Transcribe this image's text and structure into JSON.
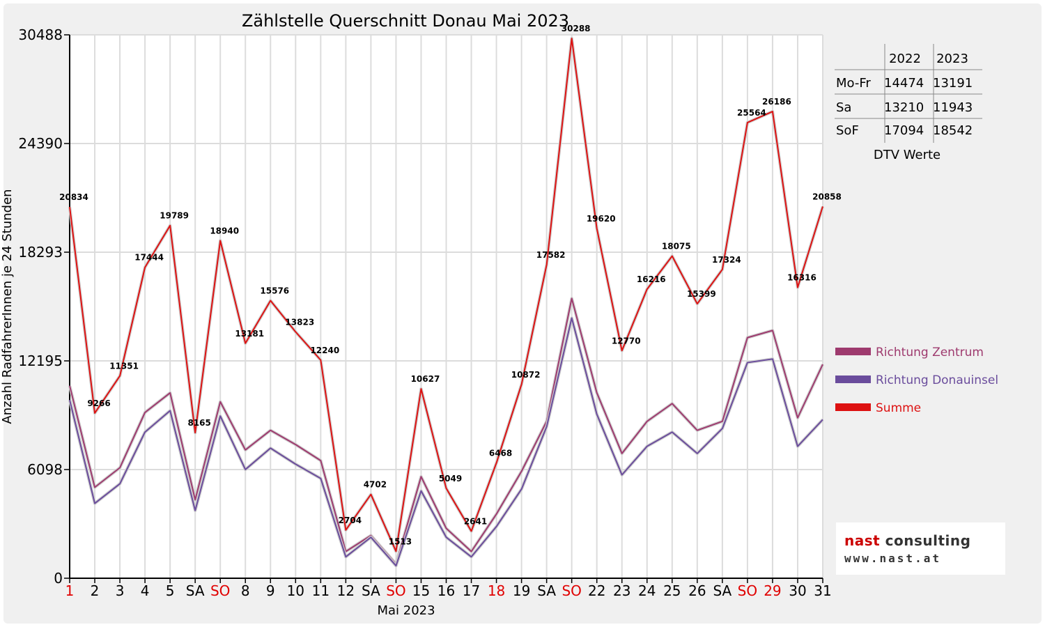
{
  "chart_data": {
    "type": "line",
    "title": "Zählstelle Querschnitt Donau Mai 2023",
    "xlabel": "Mai 2023",
    "ylabel": "Anzahl RadfahrerInnen je 24 Stunden",
    "ylim": [
      0,
      30488
    ],
    "yticks": [
      "0",
      "6098",
      "12195",
      "18293",
      "24390",
      "30488"
    ],
    "grid": true,
    "legend_position": "right",
    "categories": [
      "1",
      "2",
      "3",
      "4",
      "5",
      "SA",
      "SO",
      "8",
      "9",
      "10",
      "11",
      "12",
      "SA",
      "SO",
      "15",
      "16",
      "17",
      "18",
      "19",
      "SA",
      "SO",
      "22",
      "23",
      "24",
      "25",
      "26",
      "SA",
      "SO",
      "29",
      "30",
      "31"
    ],
    "red_categories": [
      0,
      6,
      13,
      20,
      27,
      17,
      28
    ],
    "series": [
      {
        "name": "Richtung Zentrum",
        "color": "#9e3a6e",
        "values": [
          10800,
          5100,
          6200,
          9300,
          10400,
          4400,
          9900,
          7200,
          8300,
          7500,
          6600,
          1500,
          2400,
          800,
          5700,
          2800,
          1500,
          3600,
          6000,
          8800,
          15700,
          10400,
          7000,
          8800,
          9800,
          8300,
          8800,
          13500,
          13900,
          9000,
          12000
        ]
      },
      {
        "name": "Richtung Donauinsel",
        "color": "#6a4c9c",
        "values": [
          10000,
          4200,
          5300,
          8200,
          9400,
          3800,
          9100,
          6100,
          7300,
          6400,
          5600,
          1200,
          2300,
          700,
          4900,
          2300,
          1200,
          2900,
          5000,
          8500,
          14600,
          9200,
          5800,
          7400,
          8200,
          7000,
          8400,
          12100,
          12300,
          7400,
          8900
        ]
      },
      {
        "name": "Summe",
        "color": "#dd1111",
        "values": [
          20834,
          9266,
          11351,
          17444,
          19789,
          8165,
          18940,
          13181,
          15576,
          13823,
          12240,
          2704,
          4702,
          1513,
          10627,
          5049,
          2641,
          6468,
          10872,
          17582,
          30288,
          19620,
          12770,
          16216,
          18075,
          15399,
          17324,
          25564,
          26186,
          16316,
          20858
        ]
      }
    ],
    "data_labels": [
      "20834",
      "9266",
      "11351",
      "17444",
      "19789",
      "8165",
      "18940",
      "13181",
      "15576",
      "13823",
      "12240",
      "2704",
      "4702",
      "1513",
      "10627",
      "5049",
      "2641",
      "6468",
      "10872",
      "17582",
      "30288",
      "19620",
      "12770",
      "16216",
      "18075",
      "15399",
      "17324",
      "25564",
      "26186",
      "16316",
      "20858"
    ]
  },
  "dtv_table": {
    "header": [
      "",
      "2022",
      "2023"
    ],
    "rows": [
      [
        "Mo-Fr",
        "14474",
        "13191"
      ],
      [
        "Sa",
        "13210",
        "11943"
      ],
      [
        "SoF",
        "17094",
        "18542"
      ]
    ],
    "caption": "DTV Werte"
  },
  "logo": {
    "name_part1": "nast",
    "name_part2": " consulting",
    "url": "www.nast.at"
  }
}
